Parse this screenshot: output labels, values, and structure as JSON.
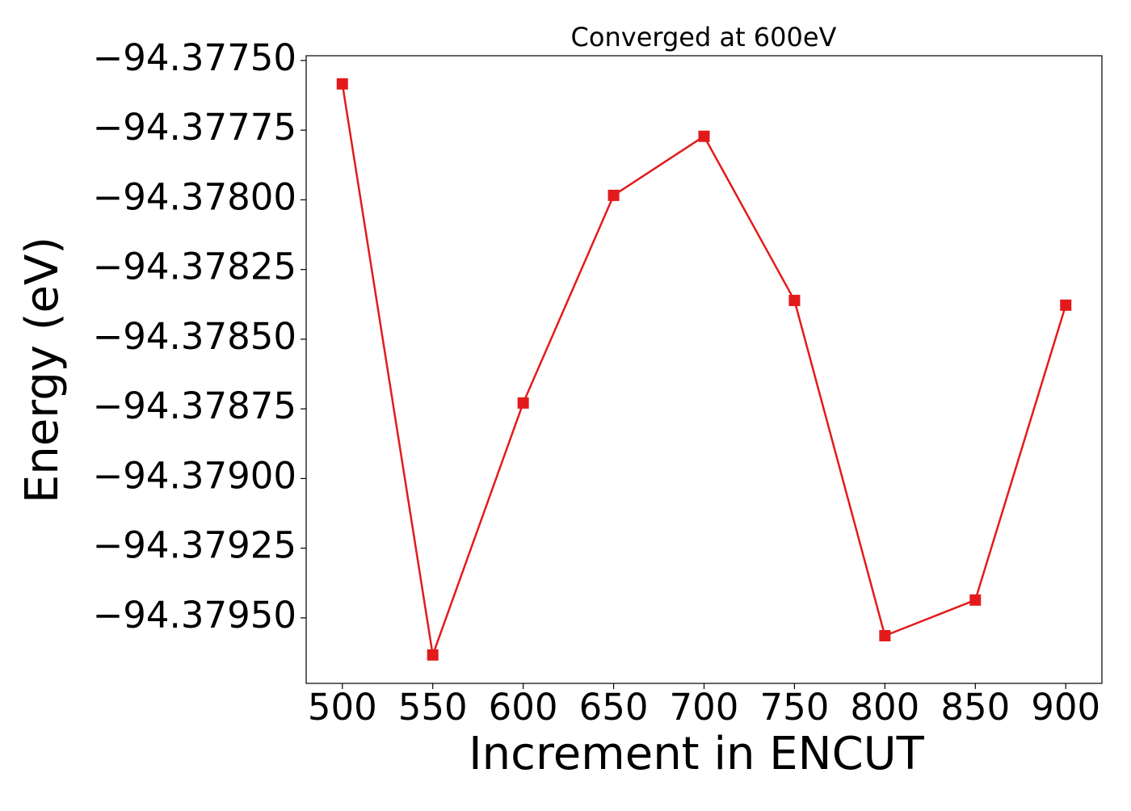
{
  "chart_data": {
    "type": "line",
    "title": "Converged at 600eV",
    "xlabel": "Increment in ENCUT",
    "ylabel": "Energy (eV)",
    "x": [
      500,
      550,
      600,
      650,
      700,
      750,
      800,
      850,
      900
    ],
    "series": [
      {
        "color": "#e31a1c",
        "values": [
          -94.377584,
          -94.379633,
          -94.378729,
          -94.377984,
          -94.377772,
          -94.378361,
          -94.379564,
          -94.379436,
          -94.378378
        ]
      }
    ],
    "xlim": [
      480,
      920
    ],
    "xticks": [
      500,
      550,
      600,
      650,
      700,
      750,
      800,
      850,
      900
    ],
    "ylim": [
      -94.379735,
      -94.377483
    ],
    "yticks": [
      {
        "value": -94.3775,
        "label": "−94.37750"
      },
      {
        "value": -94.37775,
        "label": "−94.37775"
      },
      {
        "value": -94.378,
        "label": "−94.37800"
      },
      {
        "value": -94.37825,
        "label": "−94.37825"
      },
      {
        "value": -94.3785,
        "label": "−94.37850"
      },
      {
        "value": -94.37875,
        "label": "−94.37875"
      },
      {
        "value": -94.379,
        "label": "−94.37900"
      },
      {
        "value": -94.37925,
        "label": "−94.37925"
      },
      {
        "value": -94.3795,
        "label": "−94.37950"
      }
    ]
  }
}
